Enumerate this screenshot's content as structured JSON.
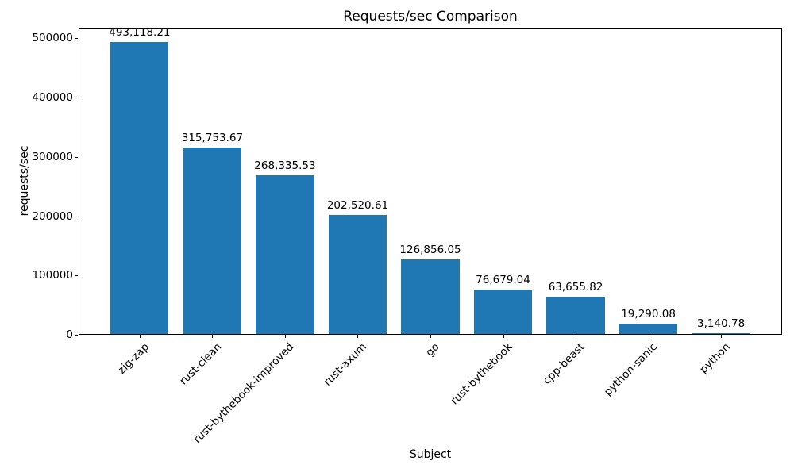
{
  "chart_data": {
    "type": "bar",
    "title": "Requests/sec Comparison",
    "xlabel": "Subject",
    "ylabel": "requests/sec",
    "categories": [
      "zig-zap",
      "rust-clean",
      "rust-bythebook-improved",
      "rust-axum",
      "go",
      "rust-bythebook",
      "cpp-beast",
      "python-sanic",
      "python"
    ],
    "values": [
      493118.21,
      315753.67,
      268335.53,
      202520.61,
      126856.05,
      76679.04,
      63655.82,
      19290.08,
      3140.78
    ],
    "value_labels": [
      "493,118.21",
      "315,753.67",
      "268,335.53",
      "202,520.61",
      "126,856.05",
      "76,679.04",
      "63,655.82",
      "19,290.08",
      "3,140.78"
    ],
    "yticks": [
      0,
      100000,
      200000,
      300000,
      400000,
      500000
    ],
    "ytick_labels": [
      "0",
      "100000",
      "200000",
      "300000",
      "400000",
      "500000"
    ],
    "ylim": [
      0,
      517774
    ],
    "bar_color": "#1f77b4",
    "axis_color": "#000000",
    "grid": false,
    "legend": false
  }
}
